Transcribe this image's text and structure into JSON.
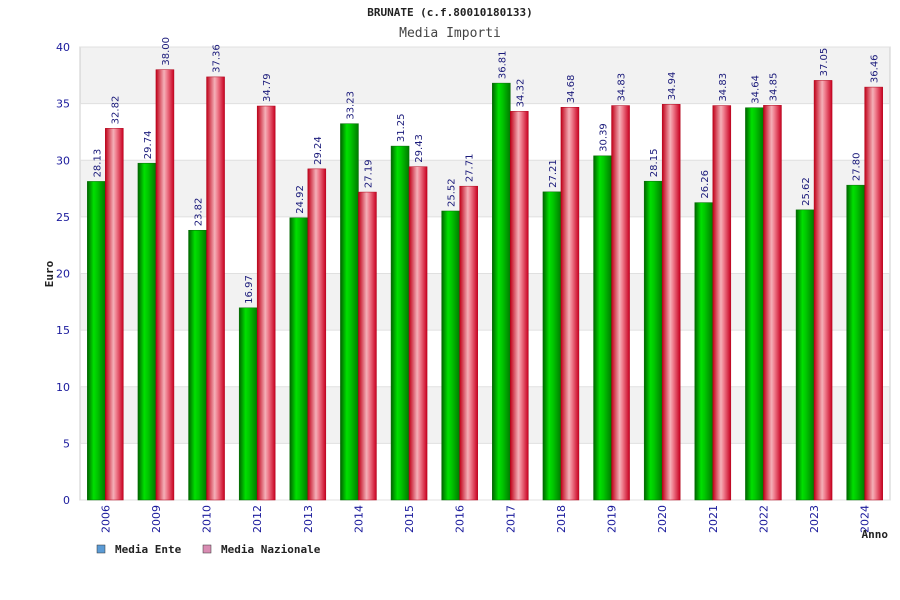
{
  "chart_data": {
    "type": "bar",
    "title": "BRUNATE (c.f.80010180133)",
    "subtitle": "Media Importi",
    "ylabel": "Euro",
    "xlabel": "Anno",
    "ylim": [
      0,
      40
    ],
    "yticks": [
      0,
      5,
      10,
      15,
      20,
      25,
      30,
      35,
      40
    ],
    "grid": true,
    "legend_position": "bottom-left",
    "categories": [
      "2006",
      "2009",
      "2010",
      "2012",
      "2013",
      "2014",
      "2015",
      "2016",
      "2017",
      "2018",
      "2019",
      "2020",
      "2021",
      "2022",
      "2023",
      "2024"
    ],
    "series": [
      {
        "name": "Media Ente",
        "color": "#00b000",
        "legend_color": "#5b9bd5",
        "values": [
          28.13,
          29.74,
          23.82,
          16.97,
          24.92,
          33.23,
          31.25,
          25.52,
          36.81,
          27.21,
          30.39,
          28.15,
          26.26,
          34.64,
          25.62,
          27.8
        ],
        "labels": [
          "28.13",
          "29.74",
          "23.82",
          "16.97",
          "24.92",
          "33.23",
          "31.25",
          "25.52",
          "36.81",
          "27.21",
          "30.39",
          "28.15",
          "26.26",
          "34.64",
          "25.62",
          "27.80"
        ]
      },
      {
        "name": "Media Nazionale",
        "color": "#e00020",
        "legend_color": "#d98cb3",
        "values": [
          32.82,
          38.0,
          37.36,
          34.79,
          29.24,
          27.19,
          29.43,
          27.71,
          34.32,
          34.68,
          34.83,
          34.94,
          34.83,
          34.85,
          37.05,
          36.46
        ],
        "labels": [
          "32.82",
          "38.00",
          "37.36",
          "34.79",
          "29.24",
          "27.19",
          "29.43",
          "27.71",
          "34.32",
          "34.68",
          "34.83",
          "34.94",
          "34.83",
          "34.85",
          "37.05",
          "36.46"
        ]
      }
    ]
  }
}
